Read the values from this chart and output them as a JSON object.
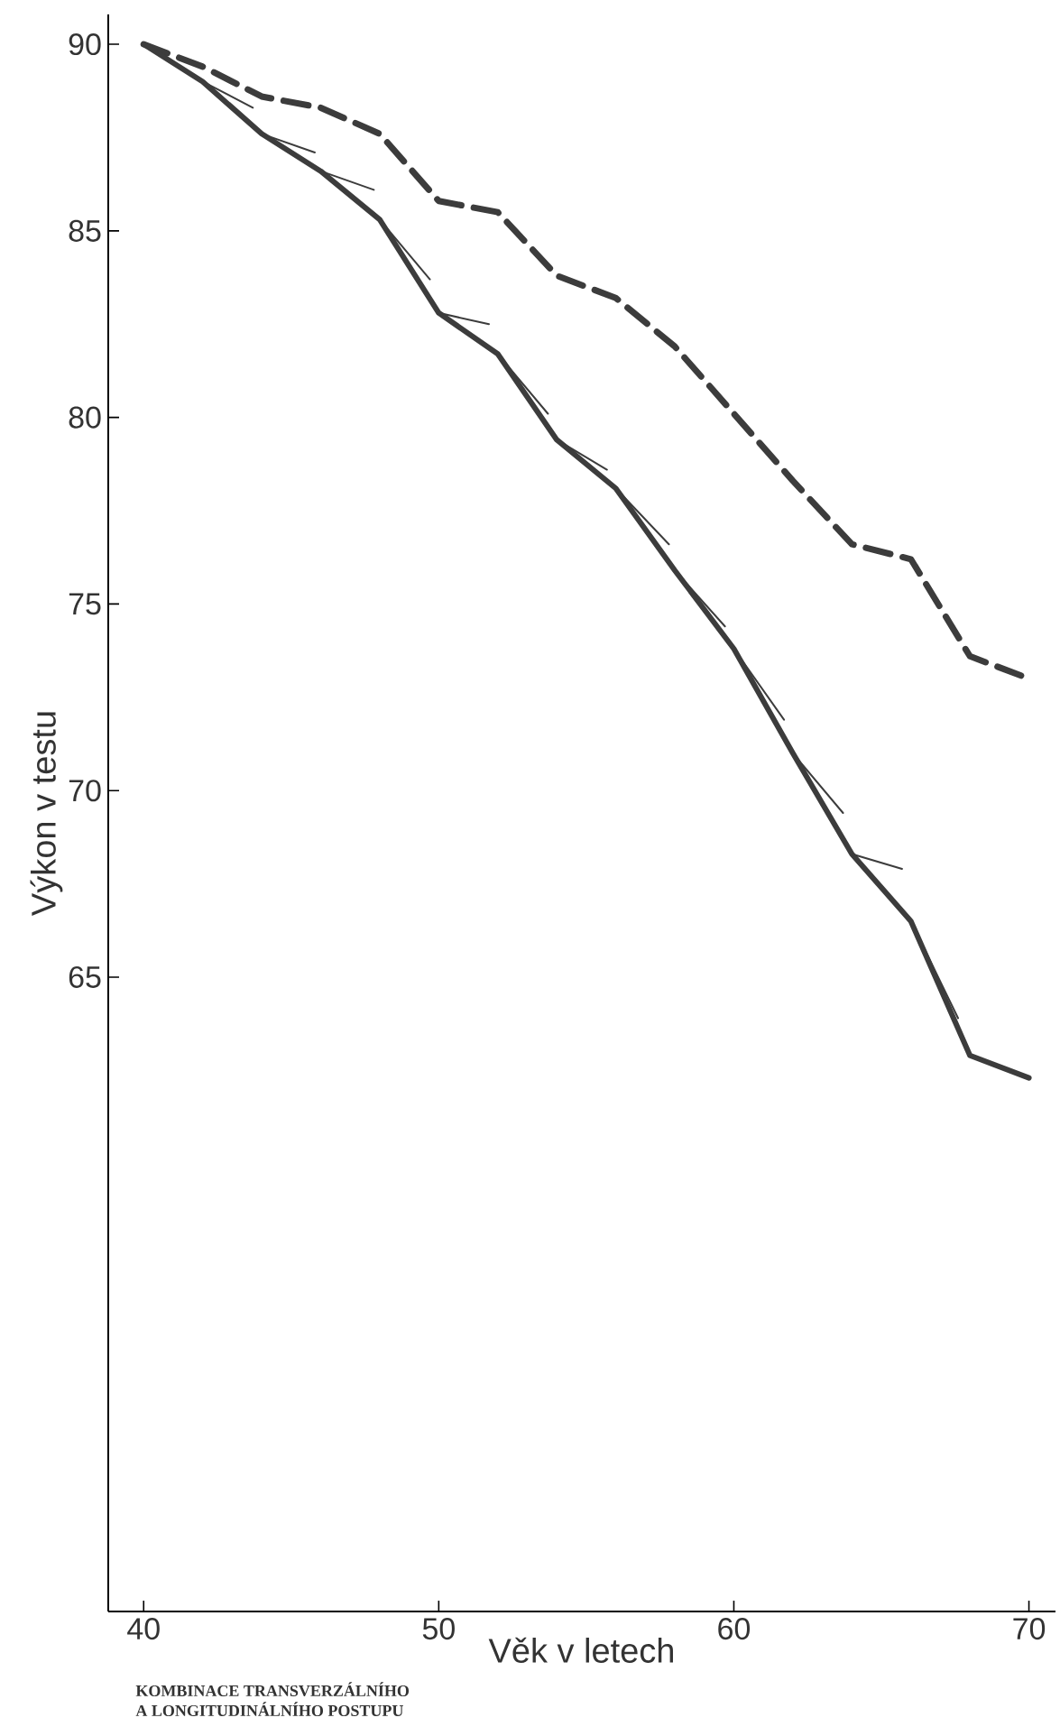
{
  "chart_data": {
    "type": "line",
    "xlabel": "Věk v letech",
    "ylabel": "Výkon v testu",
    "annotations": [
      "KOMBINACE TRANSVERZÁLNÍHO",
      "A LONGITUDINÁLNÍHO POSTUPU"
    ],
    "x": [
      40,
      42,
      44,
      46,
      48,
      50,
      52,
      54,
      56,
      58,
      60,
      62,
      64,
      66,
      68,
      70
    ],
    "xlim": [
      38.8,
      70.9
    ],
    "ylim": [
      48,
      90.8
    ],
    "xticks": [
      40,
      50,
      60,
      70
    ],
    "yticks": [
      65,
      70,
      75,
      80,
      85,
      90
    ],
    "series": [
      {
        "color": "#3c3c3c",
        "line_style": "dashed",
        "values": [
          90.0,
          89.4,
          88.6,
          88.3,
          87.6,
          85.8,
          85.5,
          83.8,
          83.2,
          81.9,
          80.1,
          78.3,
          76.6,
          76.2,
          73.6,
          73.0
        ]
      },
      {
        "color": "#3c3c3c",
        "line_style": "solid",
        "values": [
          90.0,
          89.0,
          87.6,
          86.6,
          85.3,
          82.8,
          81.7,
          79.4,
          78.1,
          75.9,
          73.8,
          71.0,
          68.3,
          66.5,
          62.9,
          62.3
        ]
      },
      {
        "color": "#3c3c3c",
        "line_style": "solid",
        "x": [
          42,
          43.7,
          null,
          44,
          45.8,
          null,
          46,
          47.8,
          null,
          48,
          49.7,
          null,
          50,
          51.7,
          null,
          52,
          53.7,
          null,
          54,
          55.7,
          null,
          56,
          57.8,
          null,
          58,
          59.7,
          null,
          60,
          61.7,
          null,
          62,
          63.7,
          null,
          64,
          65.7,
          null,
          66,
          67.6
        ],
        "values": [
          89.0,
          88.3,
          null,
          87.6,
          87.1,
          null,
          86.6,
          86.1,
          null,
          85.3,
          83.7,
          null,
          82.8,
          82.5,
          null,
          81.7,
          80.1,
          null,
          79.4,
          78.6,
          null,
          78.1,
          76.6,
          null,
          75.9,
          74.4,
          null,
          73.8,
          71.9,
          null,
          71.0,
          69.4,
          null,
          68.3,
          67.9,
          null,
          66.5,
          63.9
        ]
      }
    ]
  }
}
